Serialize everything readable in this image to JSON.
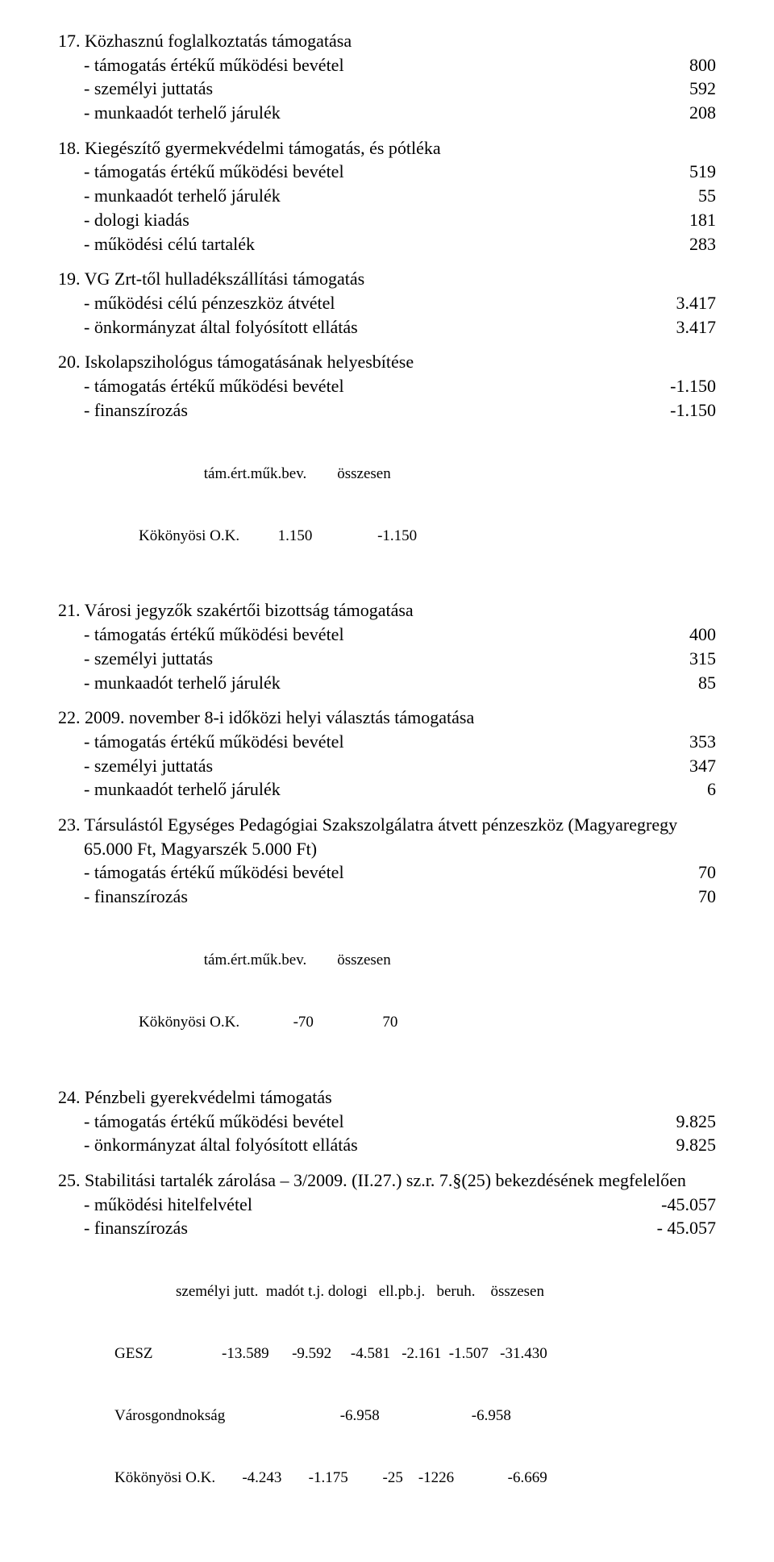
{
  "s17": {
    "title": "17. Közhasznú foglalkoztatás támogatása",
    "l1": "- támogatás értékű működési bevétel",
    "v1": "800",
    "l2": "- személyi juttatás",
    "v2": "592",
    "l3": "- munkaadót terhelő járulék",
    "v3": "208"
  },
  "s18": {
    "title": "18. Kiegészítő gyermekvédelmi támogatás, és pótléka",
    "l1": "- támogatás értékű működési bevétel",
    "v1": "519",
    "l2": "- munkaadót terhelő járulék",
    "v2": "55",
    "l3": "- dologi kiadás",
    "v3": "181",
    "l4": "- működési célú tartalék",
    "v4": "283"
  },
  "s19": {
    "title": "19. VG Zrt-től hulladékszállítási támogatás",
    "l1": "- működési célú pénzeszköz átvétel",
    "v1": "3.417",
    "l2": "- önkormányzat által folyósított ellátás",
    "v2": "3.417"
  },
  "s20": {
    "title": "20. Iskolapszihológus támogatásának helyesbítése",
    "l1": "- támogatás értékű működési bevétel",
    "v1": "-1.150",
    "l2": "- finanszírozás",
    "v2": "-1.150",
    "th": "                 tám.ért.műk.bev.        összesen",
    "tr": "Kökönyösi O.K.          1.150                 -1.150"
  },
  "s21": {
    "title": "21. Városi jegyzők szakértői bizottság támogatása",
    "l1": "- támogatás értékű működési bevétel",
    "v1": "400",
    "l2": "- személyi juttatás",
    "v2": "315",
    "l3": "- munkaadót terhelő járulék",
    "v3": "85"
  },
  "s22": {
    "title": "22. 2009. november 8-i időközi helyi választás támogatása",
    "l1": "- támogatás értékű működési bevétel",
    "v1": "353",
    "l2": "- személyi juttatás",
    "v2": "347",
    "l3": "- munkaadót terhelő járulék",
    "v3": "6"
  },
  "s23": {
    "title1": "23. Társulástól Egységes Pedagógiai Szakszolgálatra átvett pénzeszköz (Magyaregregy",
    "title2": "65.000 Ft, Magyarszék 5.000 Ft)",
    "l1": "- támogatás értékű működési bevétel",
    "v1": "70",
    "l2": "- finanszírozás",
    "v2": "70",
    "th": "                 tám.ért.műk.bev.        összesen",
    "tr": "Kökönyösi O.K.              -70                  70"
  },
  "s24": {
    "title": "24. Pénzbeli gyerekvédelmi támogatás",
    "l1": "- támogatás értékű működési bevétel",
    "v1": "9.825",
    "l2": "- önkormányzat által folyósított ellátás",
    "v2": "9.825"
  },
  "s25": {
    "title": "25. Stabilitási tartalék zárolása – 3/2009. (II.27.) sz.r. 7.§(25) bekezdésének megfelelően",
    "l1": "- működési hitelfelvétel",
    "v1": "-45.057",
    "l2": "- finanszírozás",
    "v2": "- 45.057",
    "th": "                személyi jutt.  madót t.j. dologi   ell.pb.j.   beruh.    összesen",
    "tr1": "GESZ                  -13.589      -9.592     -4.581   -2.161  -1.507   -31.430",
    "tr2": "Városgondnokság                              -6.958                        -6.958",
    "tr3": "Kökönyösi O.K.       -4.243       -1.175         -25    -1226              -6.669"
  }
}
